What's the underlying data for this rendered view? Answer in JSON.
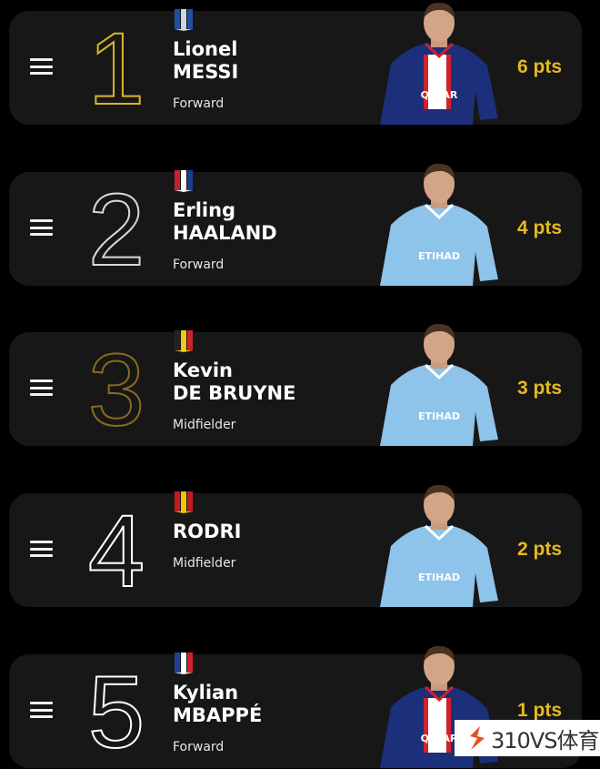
{
  "colors": {
    "accent_points": "#e8b820",
    "card_bg": "#171717",
    "page_bg": "#000000"
  },
  "players": [
    {
      "rank": "1",
      "first": "Lionel",
      "last": "MESSI",
      "position": "Forward",
      "points": "6 pts",
      "rank_color": "#d9b52a",
      "flag": [
        "#1f4fa0",
        "#c9d6ea",
        "#1f4fa0"
      ],
      "jersey": "#1c2f7a",
      "sponsor": "QATAR"
    },
    {
      "rank": "2",
      "first": "Erling",
      "last": "HAALAND",
      "position": "Forward",
      "points": "4 pts",
      "rank_color": "#d8d8d8",
      "flag": [
        "#c42030",
        "#ffffff",
        "#1b3d8f"
      ],
      "jersey": "#8ec3ea",
      "sponsor": "ETIHAD"
    },
    {
      "rank": "3",
      "first": "Kevin",
      "last": "DE BRUYNE",
      "position": "Midfielder",
      "points": "3 pts",
      "rank_color": "#8a6a1c",
      "flag": [
        "#222222",
        "#f2c619",
        "#d3202b"
      ],
      "jersey": "#8ec3ea",
      "sponsor": "ETIHAD"
    },
    {
      "rank": "4",
      "first": "",
      "last": "RODRI",
      "position": "Midfielder",
      "points": "2 pts",
      "rank_color": "#ffffff",
      "flag": [
        "#c41a20",
        "#f4c300",
        "#c41a20"
      ],
      "jersey": "#8ec3ea",
      "sponsor": "ETIHAD"
    },
    {
      "rank": "5",
      "first": "Kylian",
      "last": "MBAPPÉ",
      "position": "Forward",
      "points": "1 pts",
      "rank_color": "#ffffff",
      "flag": [
        "#1f3f9a",
        "#ffffff",
        "#d3202b"
      ],
      "jersey": "#1c2f7a",
      "sponsor": "QATAR"
    }
  ],
  "watermark": {
    "text": "310VS体育"
  }
}
